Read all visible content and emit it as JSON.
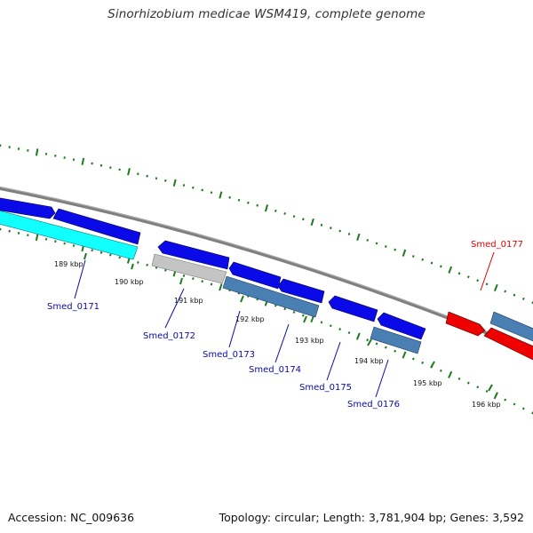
{
  "header": {
    "title": "Sinorhizobium medicae WSM419, complete genome"
  },
  "footer": {
    "accession": "Accession: NC_009636",
    "summary": "Topology: circular; Length: 3,781,904 bp; Genes: 3,592"
  },
  "colors": {
    "blue_gene": "#0a0ae8",
    "steel_gene": "#4a7fb3",
    "cyan_gene": "#11ffff",
    "red_gene": "#ee0000",
    "grey_gene": "#bfbfbf",
    "backbone": "#808080",
    "tick": "#1d7a1d",
    "label_blue": "#0a0aa8",
    "label_red": "#dd0000"
  },
  "ticks": [
    {
      "label": "189 kbp"
    },
    {
      "label": "190 kbp"
    },
    {
      "label": "191 kbp"
    },
    {
      "label": "192 kbp"
    },
    {
      "label": "193 kbp"
    },
    {
      "label": "194 kbp"
    },
    {
      "label": "195 kbp"
    },
    {
      "label": "196 kbp"
    }
  ],
  "genes": [
    {
      "label": "Smed_0171",
      "color": "blue"
    },
    {
      "label": "Smed_0172",
      "color": "blue"
    },
    {
      "label": "Smed_0173",
      "color": "blue"
    },
    {
      "label": "Smed_0174",
      "color": "blue"
    },
    {
      "label": "Smed_0175",
      "color": "blue"
    },
    {
      "label": "Smed_0176",
      "color": "blue"
    },
    {
      "label": "Smed_0177",
      "color": "red"
    }
  ]
}
